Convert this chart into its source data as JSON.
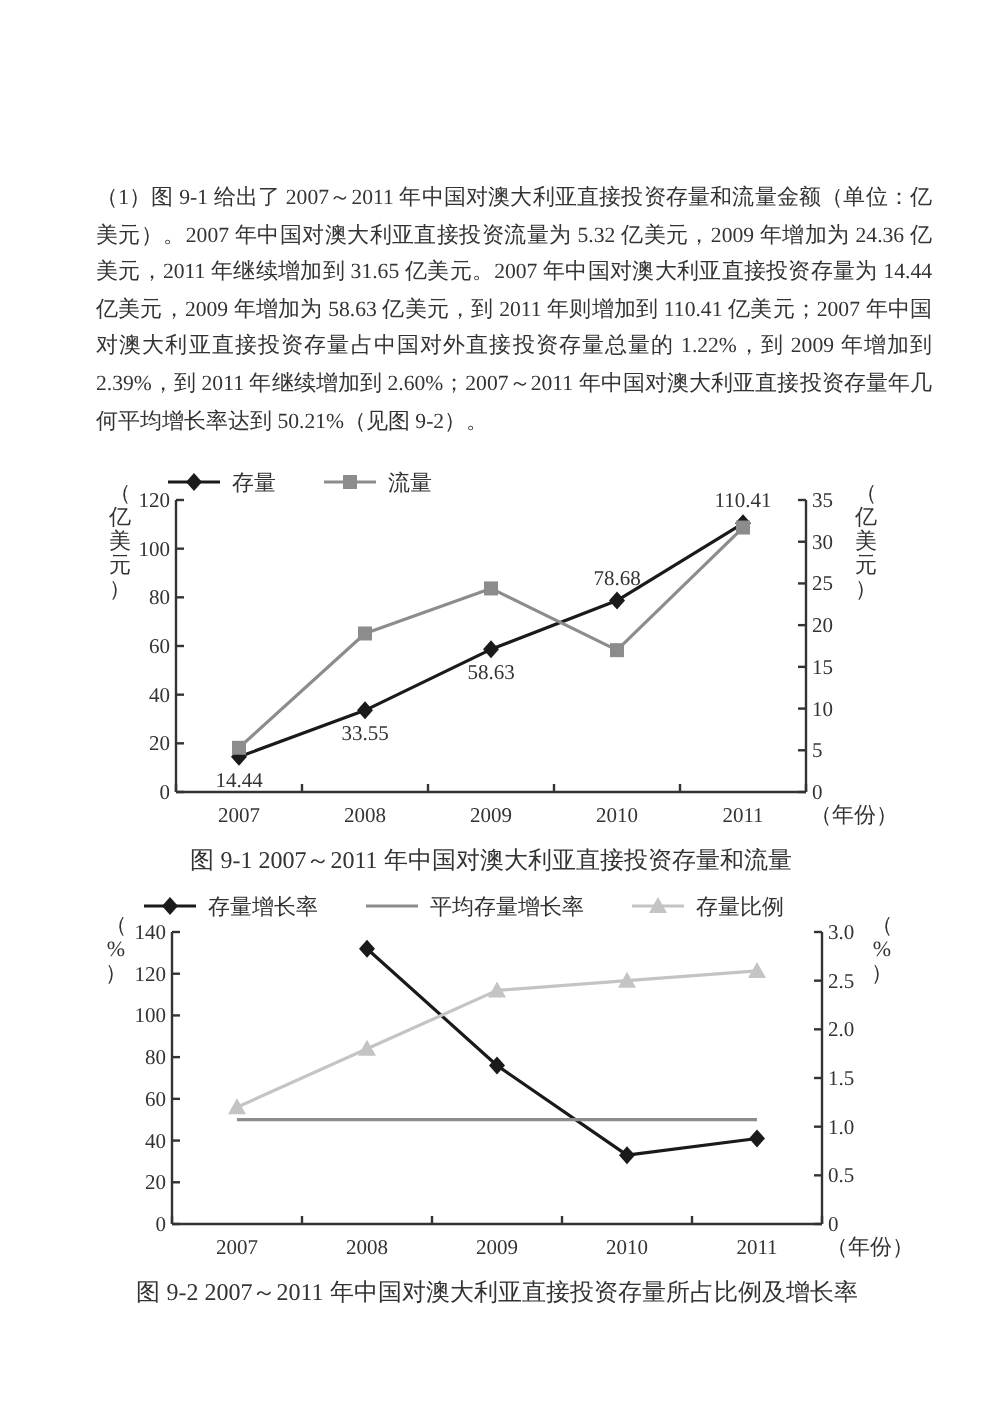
{
  "chart_data": [
    {
      "type": "other",
      "annotations": [
        "（1）图 9-1 给出了 2007～2011 年中国对澳大利亚直接投资存量和流量金额（单位：亿美元）。2007 年中国对澳大利亚直接投资流量为 5.32 亿美元，2009 年增加为 24.36 亿美元，2011 年继续增加到 31.65 亿美元。2007 年中国对澳大利亚直接投资存量为 14.44 亿美元，2009 年增加为 58.63 亿美元，到 2011 年则增加到 110.41 亿美元；2007 年中国对澳大利亚直接投资存量占中国对外直接投资存量总量的 1.22%，到 2009 年增加到 2.39%，到 2011 年继续增加到 2.60%；2007～2011 年中国对澳大利亚直接投资存量年几何平均增长率达到 50.21%（见图 9-2）。"
      ]
    },
    {
      "type": "line",
      "categories": [
        "2007",
        "2008",
        "2009",
        "2010",
        "2011"
      ],
      "ylabel": "（亿美元）",
      "y2label": "（亿美元）",
      "xlabel": "（年份）",
      "annotations": [
        "图 9-1 2007～2011 年中国对澳大利亚直接投资存量和流量"
      ],
      "ylim": [
        0,
        120
      ],
      "yticks": [
        0,
        20,
        40,
        60,
        80,
        100,
        120
      ],
      "y2lim": [
        0,
        35
      ],
      "y2ticks": [
        0,
        5,
        10,
        15,
        20,
        25,
        30,
        35
      ],
      "legend": "top",
      "grid": false,
      "series": [
        {
          "name": "存量",
          "color": "#1a1a1a",
          "marker": "diamond",
          "values": [
            14.44,
            33.55,
            58.63,
            78.68,
            110.41
          ],
          "value_labels": [
            "14.44",
            "33.55",
            "58.63",
            "78.68",
            "110.41"
          ]
        },
        {
          "name": "流量",
          "color": "#8c8c8c",
          "marker": "square",
          "axis": "y2",
          "values": [
            5.3,
            19,
            24.4,
            17,
            31.7
          ]
        }
      ]
    },
    {
      "type": "line",
      "categories": [
        "2007",
        "2008",
        "2009",
        "2010",
        "2011"
      ],
      "ylabel": "（%）",
      "y2label": "（%）",
      "xlabel": "（年份）",
      "annotations": [
        "图 9-2 2007～2011 年中国对澳大利亚直接投资存量所占比例及增长率"
      ],
      "ylim": [
        0,
        140
      ],
      "yticks": [
        0,
        20,
        40,
        60,
        80,
        100,
        120,
        140
      ],
      "y2lim": [
        0,
        3
      ],
      "y2ticks": [
        0,
        {
          "value": 0.5,
          "label": "0.5"
        },
        {
          "value": 1,
          "label": "1.0"
        },
        {
          "value": 1.5,
          "label": "1.5"
        },
        {
          "value": 2,
          "label": "2.0"
        },
        {
          "value": 2.5,
          "label": "2.5"
        },
        {
          "value": 3,
          "label": "3.0"
        }
      ],
      "legend": "top",
      "grid": false,
      "series": [
        {
          "name": "存量增长率",
          "color": "#1a1a1a",
          "marker": "diamond",
          "values": [
            null,
            132,
            76,
            33,
            41
          ]
        },
        {
          "name": "平均存量增长率",
          "color": "#8c8c8c",
          "marker": "none",
          "values": [
            50,
            50,
            50,
            50,
            50
          ]
        },
        {
          "name": "存量比例",
          "color": "#c4c4c4",
          "marker": "triangle",
          "axis": "y2",
          "values": [
            1.2,
            1.8,
            2.4,
            2.5,
            2.6
          ]
        }
      ]
    }
  ]
}
